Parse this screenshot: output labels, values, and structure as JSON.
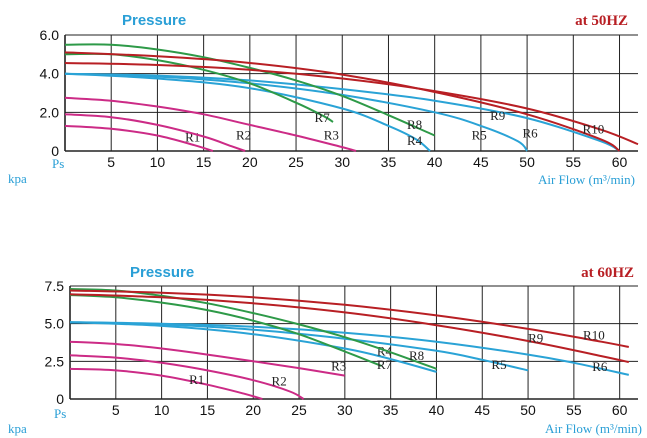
{
  "colors": {
    "magenta": "#cc2b86",
    "green": "#2e9a48",
    "blue": "#2aa3d6",
    "red": "#b81f24",
    "grid": "#222222"
  },
  "chart_data": [
    {
      "type": "line",
      "title": "Pressure",
      "frequency_label": "at  50HZ",
      "y_unit_label": "kpa",
      "y_axis_label": "Ps",
      "x_axis_label": "Air Flow (m³/min)",
      "xlim": [
        0,
        62
      ],
      "ylim": [
        0,
        6.0
      ],
      "x_ticks": [
        5,
        10,
        15,
        20,
        25,
        30,
        35,
        40,
        45,
        50,
        55,
        60
      ],
      "y_ticks": [
        0,
        2.0,
        4.0,
        6.0
      ],
      "y_tick_labels": [
        "0",
        "2.0",
        "4.0",
        "6.0"
      ],
      "grid": true,
      "series": [
        {
          "name": "R1",
          "color_key": "magenta",
          "label_at": [
            13,
            0.5
          ],
          "points": [
            [
              0,
              1.3
            ],
            [
              5,
              1.15
            ],
            [
              10,
              0.8
            ],
            [
              14,
              0.3
            ],
            [
              16,
              0
            ]
          ]
        },
        {
          "name": "R2",
          "color_key": "magenta",
          "label_at": [
            18.5,
            0.6
          ],
          "points": [
            [
              0,
              1.9
            ],
            [
              5,
              1.75
            ],
            [
              10,
              1.35
            ],
            [
              15,
              0.75
            ],
            [
              18,
              0.25
            ],
            [
              19.5,
              0
            ]
          ]
        },
        {
          "name": "R3",
          "color_key": "magenta",
          "label_at": [
            28,
            0.6
          ],
          "points": [
            [
              0,
              2.75
            ],
            [
              5,
              2.6
            ],
            [
              10,
              2.3
            ],
            [
              15,
              1.9
            ],
            [
              20,
              1.35
            ],
            [
              25,
              0.8
            ],
            [
              30,
              0.2
            ],
            [
              31.5,
              0
            ]
          ]
        },
        {
          "name": "R4",
          "color_key": "blue",
          "label_at": [
            37,
            0.3
          ],
          "points": [
            [
              0,
              4.0
            ],
            [
              10,
              3.75
            ],
            [
              20,
              3.25
            ],
            [
              30,
              2.2
            ],
            [
              35,
              1.3
            ],
            [
              38,
              0.6
            ],
            [
              39.5,
              0
            ]
          ]
        },
        {
          "name": "R5",
          "color_key": "blue",
          "label_at": [
            44,
            0.6
          ],
          "points": [
            [
              0,
              4.0
            ],
            [
              10,
              3.85
            ],
            [
              20,
              3.5
            ],
            [
              30,
              2.9
            ],
            [
              40,
              2.0
            ],
            [
              45,
              1.3
            ],
            [
              49,
              0.5
            ],
            [
              50,
              0
            ]
          ]
        },
        {
          "name": "R6",
          "color_key": "blue",
          "label_at": [
            49.5,
            0.7
          ],
          "points": [
            [
              0,
              4.0
            ],
            [
              10,
              3.9
            ],
            [
              20,
              3.65
            ],
            [
              30,
              3.2
            ],
            [
              40,
              2.6
            ],
            [
              50,
              1.7
            ],
            [
              58,
              0.5
            ],
            [
              60,
              0
            ]
          ]
        },
        {
          "name": "R7",
          "color_key": "green",
          "label_at": [
            27,
            1.5
          ],
          "points": [
            [
              0,
              5.0
            ],
            [
              5,
              5.0
            ],
            [
              10,
              4.7
            ],
            [
              15,
              4.2
            ],
            [
              20,
              3.5
            ],
            [
              25,
              2.5
            ],
            [
              28,
              1.8
            ],
            [
              29,
              1.5
            ]
          ]
        },
        {
          "name": "R8",
          "color_key": "green",
          "label_at": [
            37,
            1.15
          ],
          "points": [
            [
              0,
              5.5
            ],
            [
              5,
              5.5
            ],
            [
              10,
              5.25
            ],
            [
              15,
              4.85
            ],
            [
              20,
              4.3
            ],
            [
              25,
              3.65
            ],
            [
              30,
              2.85
            ],
            [
              35,
              1.85
            ],
            [
              40,
              0.8
            ]
          ]
        },
        {
          "name": "R9",
          "color_key": "red",
          "label_at": [
            46,
            1.6
          ],
          "points": [
            [
              0,
              5.1
            ],
            [
              10,
              4.9
            ],
            [
              20,
              4.55
            ],
            [
              30,
              3.95
            ],
            [
              40,
              3.05
            ],
            [
              50,
              1.9
            ],
            [
              58,
              0.6
            ],
            [
              60,
              0
            ]
          ]
        },
        {
          "name": "R10",
          "color_key": "red",
          "label_at": [
            56,
            0.9
          ],
          "points": [
            [
              0,
              4.55
            ],
            [
              10,
              4.45
            ],
            [
              20,
              4.2
            ],
            [
              30,
              3.75
            ],
            [
              40,
              3.1
            ],
            [
              50,
              2.2
            ],
            [
              58,
              1.1
            ],
            [
              62,
              0.35
            ]
          ]
        }
      ]
    },
    {
      "type": "line",
      "title": "Pressure",
      "frequency_label": "at  60HZ",
      "y_unit_label": "kpa",
      "y_axis_label": "Ps",
      "x_axis_label": "Air Flow (m³/min)",
      "xlim": [
        0,
        62
      ],
      "ylim": [
        0,
        7.5
      ],
      "x_ticks": [
        5,
        10,
        15,
        20,
        25,
        30,
        35,
        40,
        45,
        50,
        55,
        60
      ],
      "y_ticks": [
        0,
        2.5,
        5.0,
        7.5
      ],
      "y_tick_labels": [
        "0",
        "2.5",
        "5.0",
        "7.5"
      ],
      "grid": true,
      "series": [
        {
          "name": "R1",
          "color_key": "magenta",
          "label_at": [
            13,
            1.0
          ],
          "points": [
            [
              0,
              2.0
            ],
            [
              5,
              1.9
            ],
            [
              10,
              1.55
            ],
            [
              15,
              0.95
            ],
            [
              19,
              0.35
            ],
            [
              21,
              0
            ]
          ]
        },
        {
          "name": "R2",
          "color_key": "magenta",
          "label_at": [
            22,
            0.9
          ],
          "points": [
            [
              0,
              2.9
            ],
            [
              5,
              2.75
            ],
            [
              10,
              2.4
            ],
            [
              15,
              1.9
            ],
            [
              20,
              1.25
            ],
            [
              24,
              0.5
            ],
            [
              25.5,
              0
            ]
          ]
        },
        {
          "name": "R3",
          "color_key": "magenta",
          "label_at": [
            28.5,
            1.9
          ],
          "points": [
            [
              0,
              3.8
            ],
            [
              5,
              3.65
            ],
            [
              10,
              3.35
            ],
            [
              15,
              2.95
            ],
            [
              20,
              2.5
            ],
            [
              25,
              2.05
            ],
            [
              30,
              1.55
            ]
          ]
        },
        {
          "name": "R4",
          "color_key": "blue",
          "label_at": [
            33.5,
            2.9
          ],
          "points": [
            [
              0,
              5.1
            ],
            [
              10,
              4.85
            ],
            [
              20,
              4.3
            ],
            [
              30,
              3.35
            ],
            [
              35,
              2.65
            ],
            [
              40,
              1.8
            ]
          ]
        },
        {
          "name": "R5",
          "color_key": "blue",
          "label_at": [
            46,
            2.0
          ],
          "points": [
            [
              0,
              5.1
            ],
            [
              10,
              4.95
            ],
            [
              20,
              4.6
            ],
            [
              30,
              4.0
            ],
            [
              40,
              3.2
            ],
            [
              45,
              2.6
            ],
            [
              50,
              1.9
            ]
          ]
        },
        {
          "name": "R6",
          "color_key": "blue",
          "label_at": [
            57,
            1.85
          ],
          "points": [
            [
              0,
              5.1
            ],
            [
              10,
              5.0
            ],
            [
              20,
              4.8
            ],
            [
              30,
              4.4
            ],
            [
              40,
              3.8
            ],
            [
              50,
              2.95
            ],
            [
              55,
              2.4
            ],
            [
              61,
              1.6
            ]
          ]
        },
        {
          "name": "R7",
          "color_key": "green",
          "label_at": [
            33.5,
            2.0
          ],
          "points": [
            [
              0,
              6.9
            ],
            [
              5,
              6.75
            ],
            [
              10,
              6.4
            ],
            [
              15,
              5.9
            ],
            [
              20,
              5.2
            ],
            [
              25,
              4.3
            ],
            [
              30,
              3.15
            ],
            [
              34,
              2.2
            ]
          ]
        },
        {
          "name": "R8",
          "color_key": "green",
          "label_at": [
            37,
            2.6
          ],
          "points": [
            [
              0,
              7.3
            ],
            [
              5,
              7.2
            ],
            [
              10,
              6.85
            ],
            [
              15,
              6.35
            ],
            [
              20,
              5.7
            ],
            [
              25,
              4.95
            ],
            [
              30,
              4.1
            ],
            [
              35,
              3.1
            ],
            [
              40,
              2.0
            ]
          ]
        },
        {
          "name": "R9",
          "color_key": "red",
          "label_at": [
            50,
            3.75
          ],
          "points": [
            [
              0,
              6.95
            ],
            [
              10,
              6.75
            ],
            [
              20,
              6.35
            ],
            [
              30,
              5.75
            ],
            [
              40,
              4.9
            ],
            [
              50,
              3.85
            ],
            [
              58,
              2.85
            ],
            [
              61,
              2.45
            ]
          ]
        },
        {
          "name": "R10",
          "color_key": "red",
          "label_at": [
            56,
            3.95
          ],
          "points": [
            [
              0,
              7.2
            ],
            [
              10,
              7.05
            ],
            [
              20,
              6.75
            ],
            [
              30,
              6.25
            ],
            [
              40,
              5.55
            ],
            [
              50,
              4.65
            ],
            [
              58,
              3.8
            ],
            [
              61,
              3.45
            ]
          ]
        }
      ]
    }
  ]
}
